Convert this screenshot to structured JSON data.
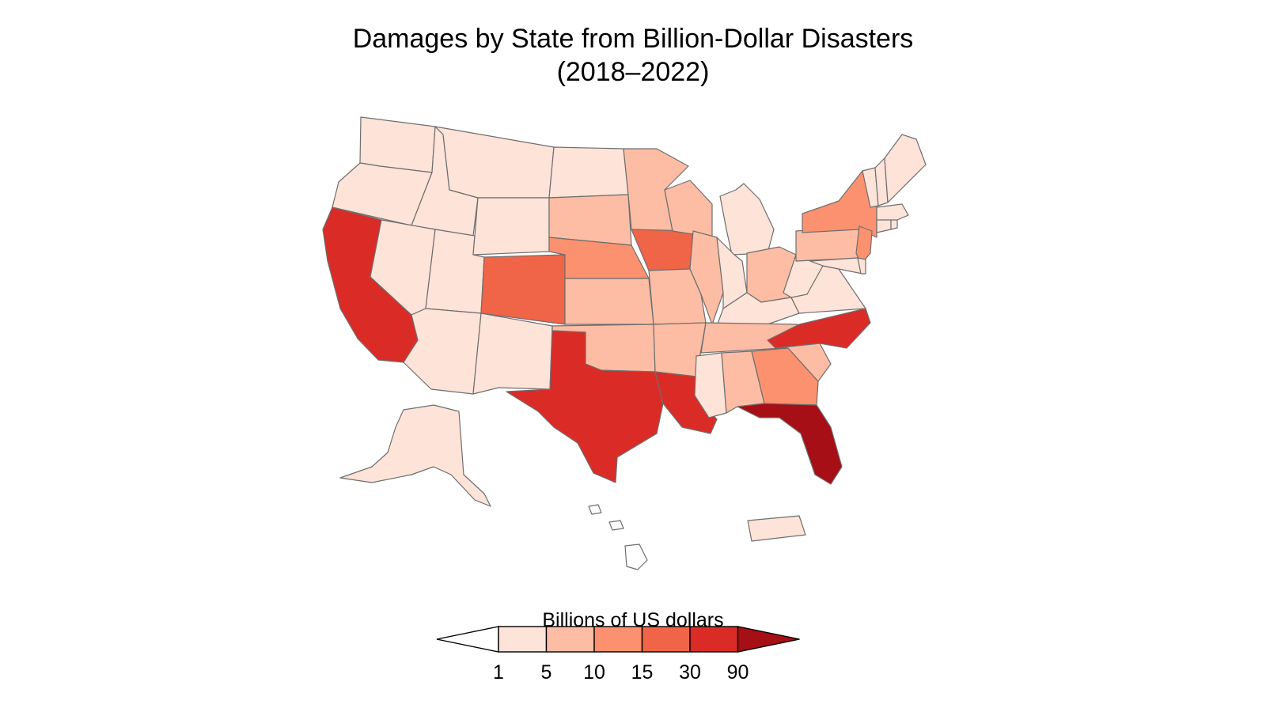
{
  "title": {
    "line1": "Damages by State from Billion-Dollar Disasters",
    "line2": "(2018–2022)"
  },
  "legend": {
    "title": "Billions of US dollars",
    "breaks": [
      "1",
      "5",
      "10",
      "15",
      "30",
      "90"
    ],
    "colors": [
      "#ffffff",
      "#fde3d8",
      "#fcbda4",
      "#fb916f",
      "#f06448",
      "#db2b26",
      "#a50f15"
    ]
  },
  "map_data": {
    "classes": [
      "< 1",
      "1–5",
      "5–10",
      "10–15",
      "15–30",
      "30–90",
      "> 90"
    ],
    "states": {
      "WA": 1,
      "OR": 1,
      "CA": 5,
      "ID": 1,
      "NV": 1,
      "UT": 1,
      "AZ": 1,
      "MT": 1,
      "WY": 1,
      "CO": 4,
      "NM": 1,
      "ND": 1,
      "SD": 2,
      "NE": 3,
      "KS": 2,
      "OK": 2,
      "TX": 5,
      "MN": 2,
      "IA": 4,
      "MO": 2,
      "AR": 2,
      "LA": 5,
      "WI": 2,
      "IL": 2,
      "MI": 1,
      "IN": 1,
      "OH": 2,
      "KY": 1,
      "TN": 2,
      "MS": 1,
      "AL": 2,
      "GA": 3,
      "FL": 6,
      "SC": 2,
      "NC": 5,
      "VA": 1,
      "WV": 1,
      "PA": 2,
      "NY": 3,
      "NJ": 3,
      "DE": 1,
      "MD": 1,
      "CT": 1,
      "RI": 1,
      "MA": 1,
      "VT": 1,
      "NH": 1,
      "ME": 1,
      "AK": 1,
      "HI": 0,
      "PR": 1
    }
  }
}
